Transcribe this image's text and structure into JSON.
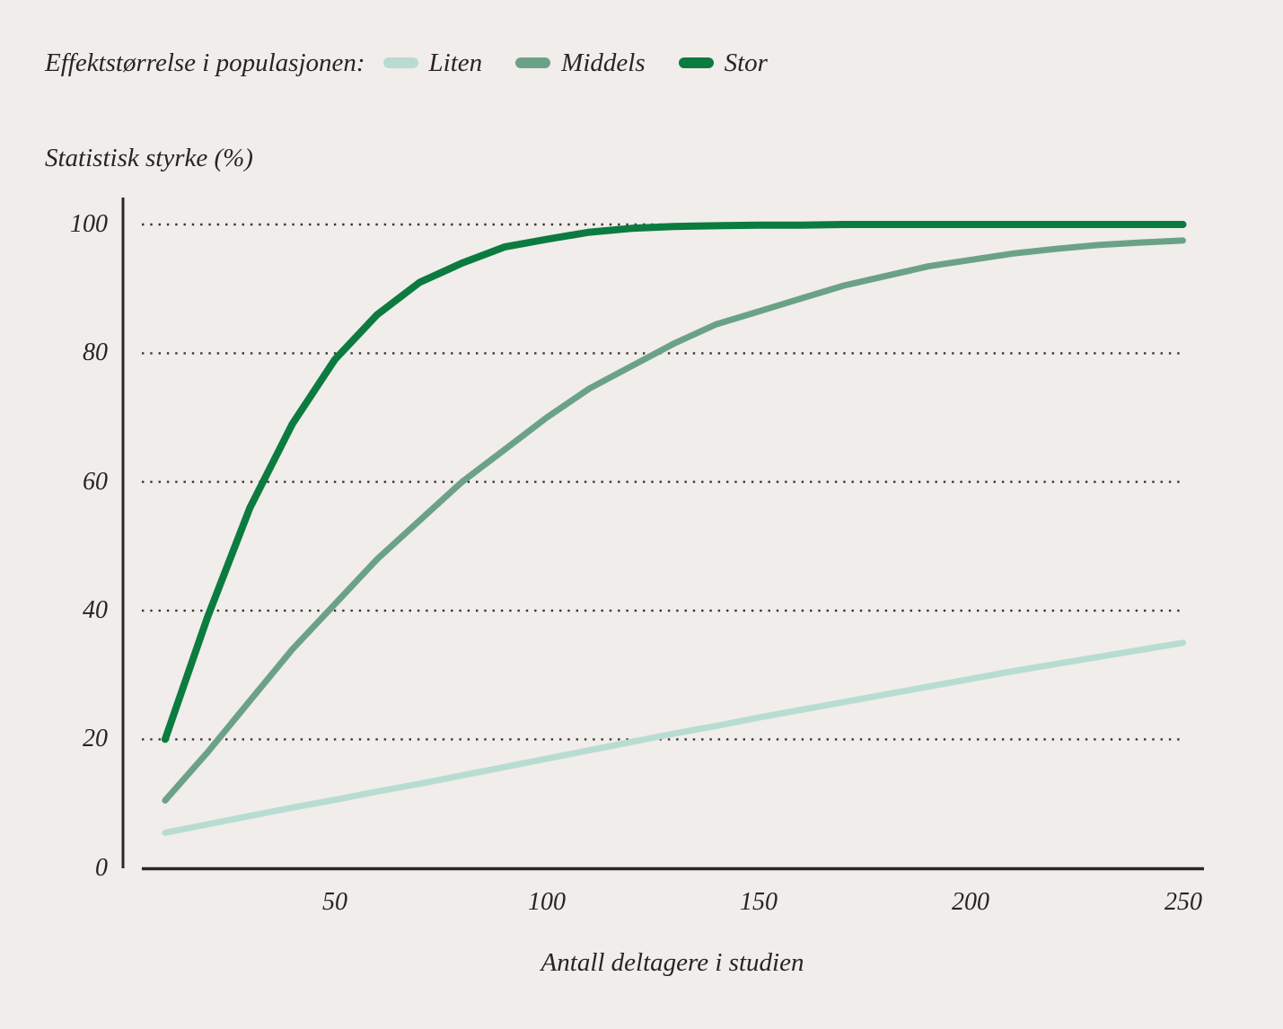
{
  "legend": {
    "label": "Effektstørrelse i populasjonen:"
  },
  "y_axis_title": "Statistisk styrke (%)",
  "x_axis_title": "Antall deltagere i studien",
  "colors": {
    "background": "#f0edea",
    "text": "#292423",
    "axis": "#2b2724",
    "gridline_dots": "#3a342f"
  },
  "chart_data": {
    "type": "line",
    "title": "",
    "ylabel": "Statistisk styrke (%)",
    "xlabel": "Antall deltagere i studien",
    "legend_title": "Effektstørrelse i populasjonen:",
    "legend_position": "top-left",
    "grid": "horizontal dotted lines at y = 20, 40, 60, 80, 100",
    "xlim": [
      0,
      256
    ],
    "ylim": [
      0,
      100
    ],
    "xticks": [
      50,
      100,
      150,
      200,
      250
    ],
    "yticks": [
      0,
      20,
      40,
      60,
      80,
      100
    ],
    "x": [
      10,
      20,
      30,
      40,
      50,
      60,
      70,
      80,
      90,
      100,
      110,
      120,
      130,
      140,
      150,
      160,
      170,
      180,
      190,
      200,
      210,
      220,
      230,
      240,
      250
    ],
    "series": [
      {
        "name": "Liten",
        "color": "#b8dcd2",
        "values": [
          5.5,
          6.8,
          8.1,
          9.4,
          10.6,
          11.9,
          13.1,
          14.4,
          15.7,
          17,
          18.3,
          19.6,
          20.9,
          22.1,
          23.4,
          24.6,
          25.8,
          27,
          28.2,
          29.4,
          30.6,
          31.7,
          32.8,
          33.9,
          35
        ]
      },
      {
        "name": "Middels",
        "color": "#6ba287",
        "values": [
          10.5,
          18,
          26,
          34,
          41,
          48,
          54,
          60,
          65,
          70,
          74.5,
          78,
          81.5,
          84.5,
          86.5,
          88.5,
          90.5,
          92,
          93.5,
          94.5,
          95.5,
          96.2,
          96.8,
          97.2,
          97.5
        ]
      },
      {
        "name": "Stor",
        "color": "#0c7b40",
        "values": [
          20,
          39,
          56,
          69,
          79,
          86,
          91,
          94,
          96.5,
          97.7,
          98.8,
          99.4,
          99.7,
          99.8,
          99.9,
          99.9,
          100,
          100,
          100,
          100,
          100,
          100,
          100,
          100,
          100
        ]
      }
    ]
  }
}
